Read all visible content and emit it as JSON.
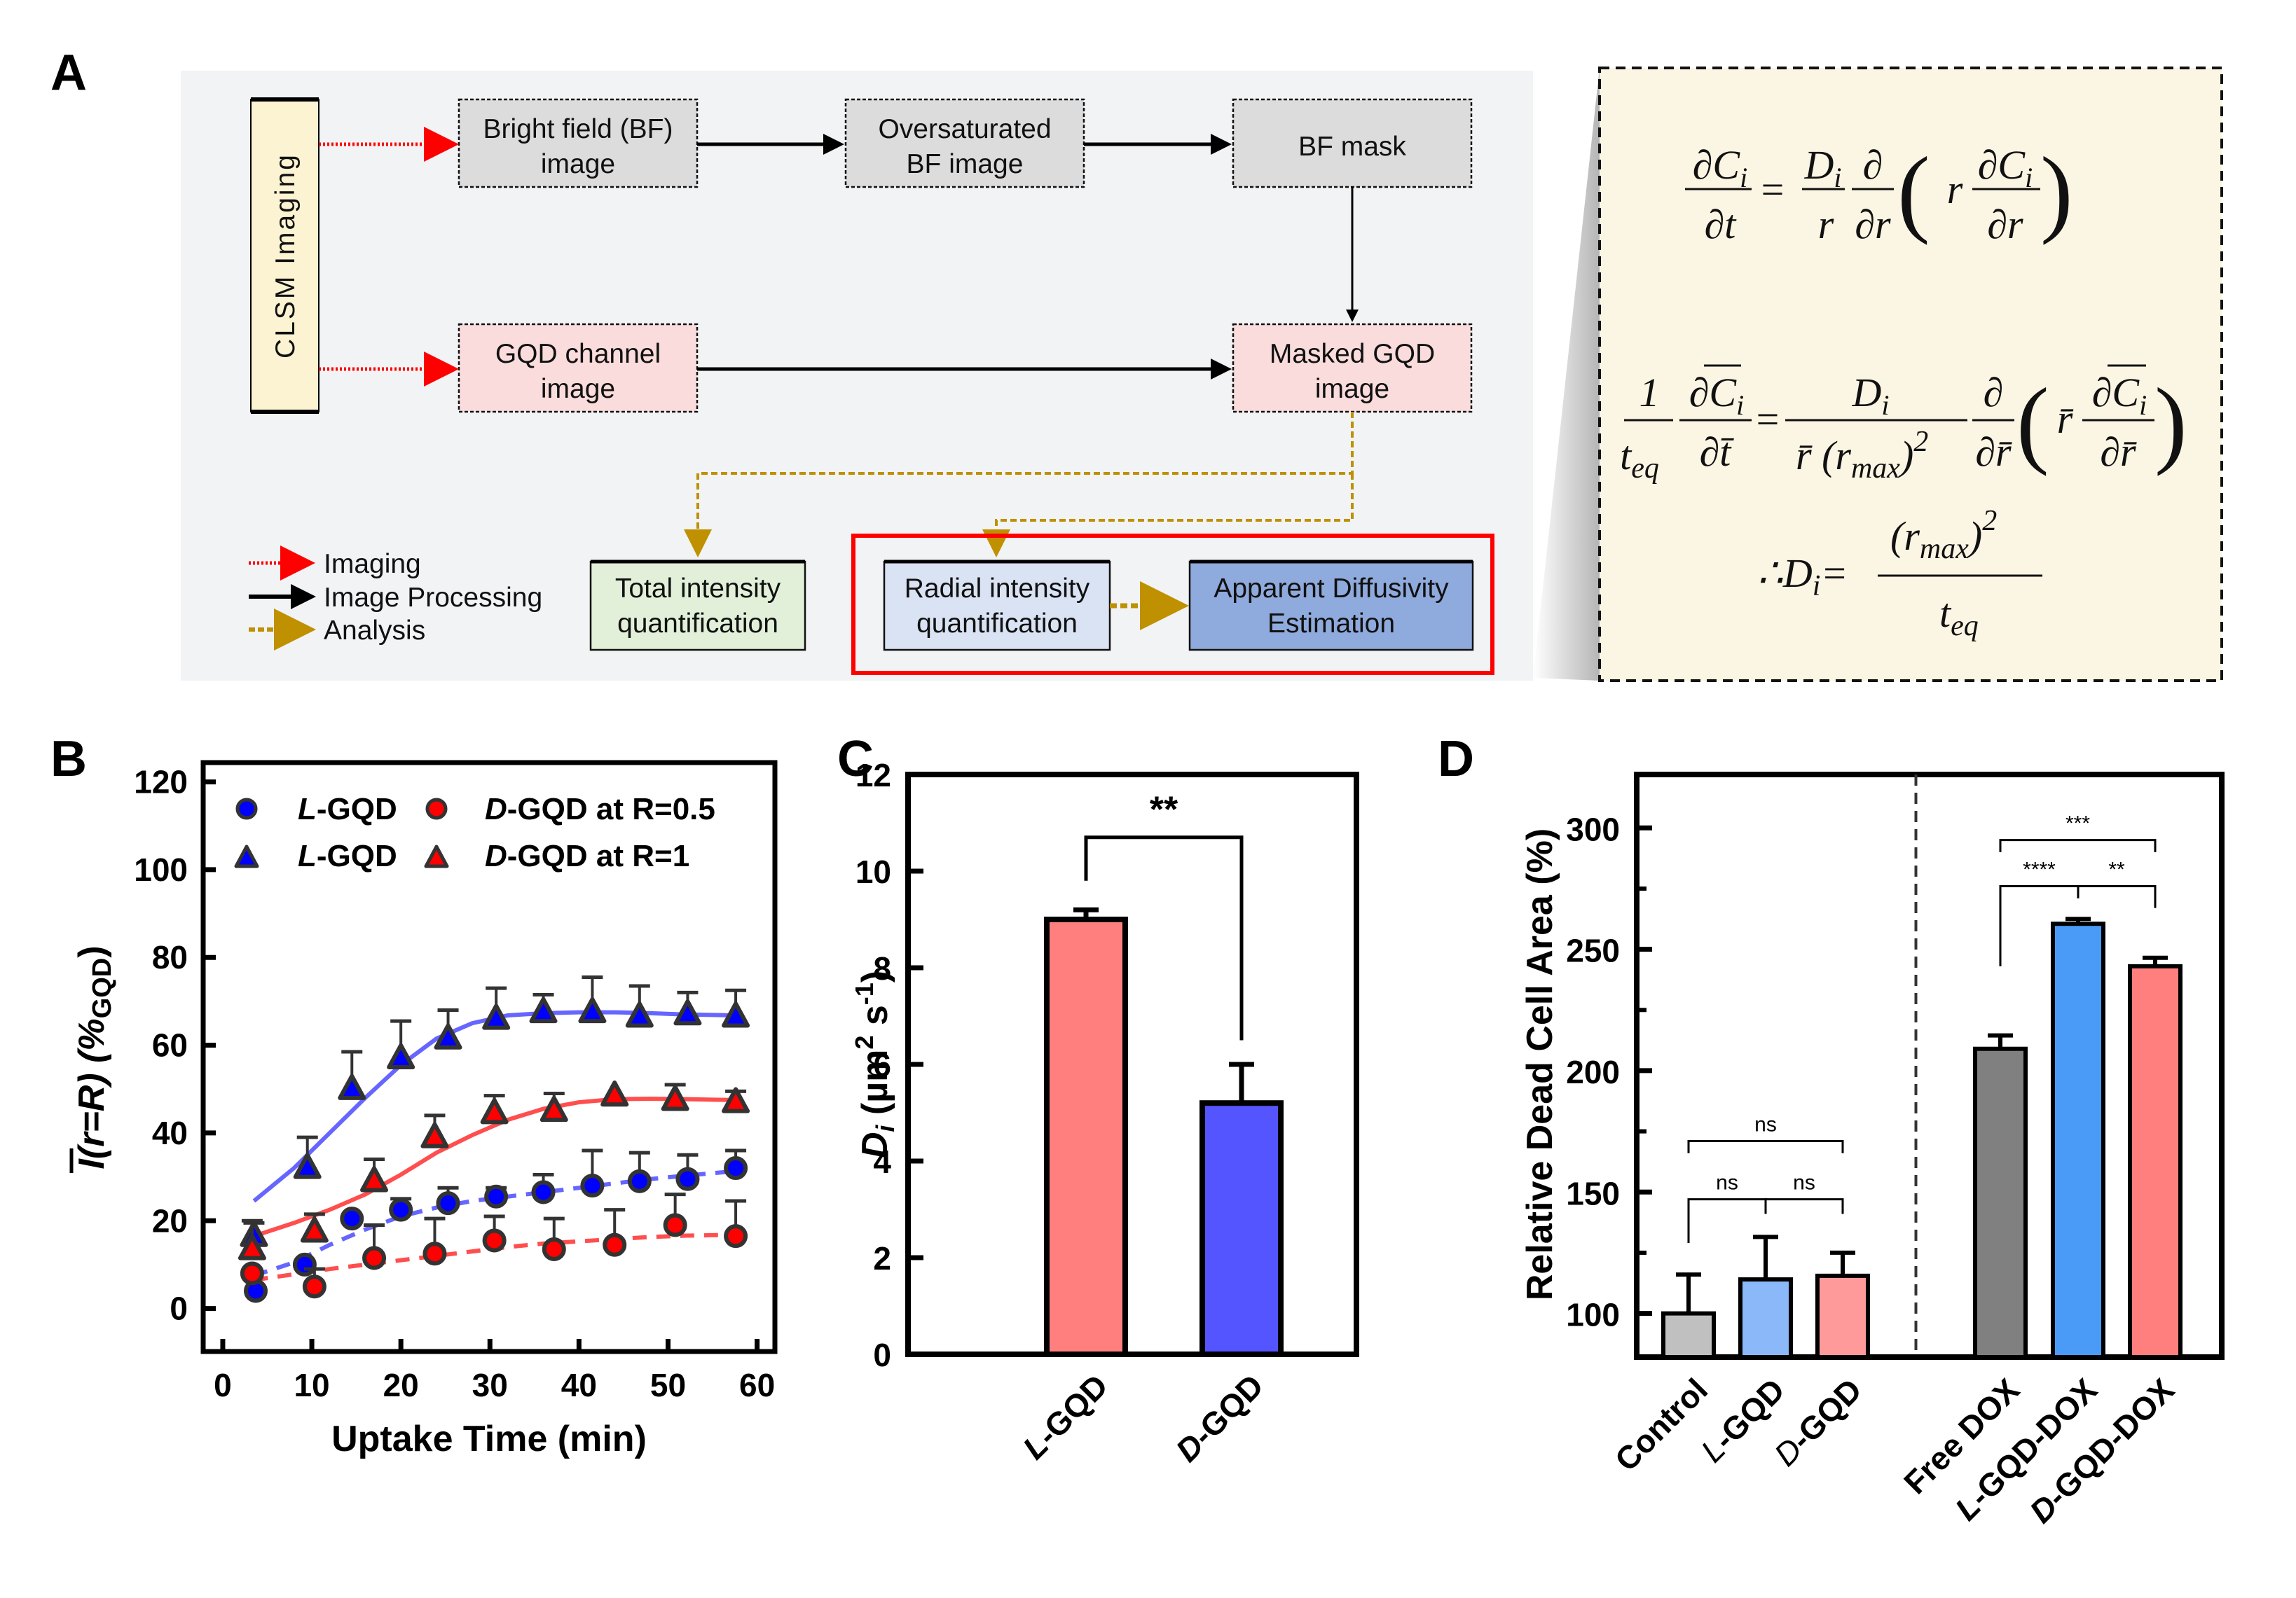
{
  "figure": {
    "panel_labels": [
      "A",
      "B",
      "C",
      "D"
    ]
  },
  "panel_a": {
    "side_label": "CLSM Imaging",
    "boxes": {
      "bf_image": [
        "Bright field (BF)",
        "image"
      ],
      "oversat": [
        "Oversaturated",
        "BF image"
      ],
      "bf_mask": [
        "BF mask"
      ],
      "gqd_channel": [
        "GQD channel",
        "image"
      ],
      "masked_gqd": [
        "Masked GQD",
        "image"
      ],
      "total_intensity": [
        "Total intensity",
        "quantification"
      ],
      "radial_intensity": [
        "Radial intensity",
        "quantification"
      ],
      "apparent_diffusivity": [
        "Apparent Diffusivity",
        "Estimation"
      ]
    },
    "legend": {
      "imaging": "Imaging",
      "processing": "Image Processing",
      "analysis": "Analysis"
    },
    "colors": {
      "background": "#f2f3f5",
      "side_box": "#fbf3d2",
      "grey_box": "#dcdcdc",
      "pink_box": "#fadcdc",
      "green_box": "#e2f0d9",
      "light_blue_box": "#dae3f3",
      "blue_box": "#8faadc",
      "imaging_arrow": "#ff0000",
      "analysis_arrow": "#bf9000",
      "highlight": "#ff0000",
      "equation_bg": "#fbf5e3"
    },
    "equations": {
      "eq1": {
        "lhs_num": "∂C",
        "lhs_num_sub": "i",
        "lhs_den": "∂t",
        "eq": "=",
        "f1_num": "D",
        "f1_num_sub": "i",
        "f1_den": "r",
        "f2_num": "∂",
        "f2_den": "∂r",
        "inner_r": "r",
        "inner_num": "∂C",
        "inner_num_sub": "i",
        "inner_den": "∂r"
      },
      "eq2": {
        "one": "1",
        "teq": "t",
        "teq_sub": "eq",
        "lhs_num": "∂C",
        "lhs_num_sub": "i",
        "lhs_den": "∂t̄",
        "eq": "=",
        "f1_num": "D",
        "f1_num_sub": "i",
        "f1_den": "r̄ (r",
        "f1_den_sub": "max",
        "f1_den_tail": ")",
        "f1_den_sup": "2",
        "f2_num": "∂",
        "f2_den": "∂r̄",
        "inner_r": "r̄",
        "inner_num": "∂C",
        "inner_num_sub": "i",
        "inner_den": "∂r̄"
      },
      "eq3": {
        "therefore": "∴D",
        "therefore_sub": "i",
        "eq": "=",
        "num": "(r",
        "num_sub": "max",
        "num_tail": ")",
        "num_sup": "2",
        "den": "t",
        "den_sub": "eq"
      }
    }
  },
  "chart_data": [
    {
      "panel": "B",
      "type": "scatter",
      "title": "",
      "xlabel": "Uptake Time (min)",
      "ylabel": "Ī(r=R) (%GQD)",
      "ylabel_parts": {
        "main": "I(r=R) (%",
        "sub": "GQD",
        "close": ")"
      },
      "xlim": [
        -2.2,
        62
      ],
      "ylim": [
        -9.8,
        124.4
      ],
      "xticks": [
        0,
        10,
        20,
        30,
        40,
        50,
        60
      ],
      "yticks": [
        0,
        20,
        40,
        60,
        80,
        100,
        120
      ],
      "legend_position": "top-left",
      "legend": [
        {
          "marker": "circle",
          "color": "#0000ff",
          "prefix": "L",
          "label": "-GQD"
        },
        {
          "marker": "circle",
          "color": "#ff0000",
          "prefix": "D",
          "label": "-GQD at R=0.5"
        },
        {
          "marker": "triangle",
          "color": "#0000ff",
          "prefix": "L",
          "label": "-GQD"
        },
        {
          "marker": "triangle",
          "color": "#ff0000",
          "prefix": "D",
          "label": "-GQD at R=1"
        }
      ],
      "series": [
        {
          "name": "L-GQD at R=1",
          "marker": "triangle",
          "color": "#0000ff",
          "line_color": "#5555ff",
          "line_style": "solid",
          "x": [
            3.5,
            9.5,
            14.5,
            20,
            25.3,
            30.7,
            36,
            41.5,
            46.8,
            52.2,
            57.6
          ],
          "y": [
            16.5,
            32,
            50,
            57,
            61.5,
            66,
            67.5,
            67.5,
            66.5,
            67,
            66.5
          ],
          "err": [
            3,
            7,
            8.5,
            8.5,
            6.5,
            7,
            4,
            8,
            7,
            5,
            6
          ],
          "fit_x": [
            3.5,
            8,
            12,
            16,
            20,
            24,
            28,
            32,
            36,
            40,
            44,
            48,
            52,
            57.6
          ],
          "fit_y": [
            24.5,
            32,
            40,
            48,
            55.5,
            61.5,
            65,
            66.8,
            67.3,
            67.5,
            67.5,
            67.3,
            67,
            66.8
          ]
        },
        {
          "name": "D-GQD at R=1",
          "marker": "triangle",
          "color": "#ff0000",
          "line_color": "#ff3b3b",
          "line_style": "solid",
          "x": [
            3.3,
            10.3,
            17,
            23.8,
            30.5,
            37.2,
            44,
            50.8,
            57.6
          ],
          "y": [
            13.5,
            17.5,
            29,
            39,
            44.5,
            45,
            48.5,
            47.5,
            47
          ],
          "err": [
            6.5,
            4,
            5,
            5,
            4,
            4,
            0,
            3.5,
            2.5
          ],
          "fit_x": [
            3.5,
            8,
            12,
            16,
            20,
            24,
            28,
            32,
            36,
            40,
            44,
            48,
            52,
            57.6
          ],
          "fit_y": [
            16.5,
            19.5,
            22.5,
            26,
            30.5,
            35.5,
            39.5,
            43,
            45.5,
            47,
            47.7,
            47.8,
            47.7,
            47.5
          ]
        },
        {
          "name": "L-GQD at R=0.5",
          "marker": "circle",
          "color": "#0000ff",
          "line_color": "#5555ff",
          "line_style": "dashed",
          "x": [
            3.7,
            9.2,
            14.5,
            20,
            25.3,
            30.7,
            36,
            41.5,
            46.8,
            52.2,
            57.6
          ],
          "y": [
            4,
            10,
            20.5,
            22.5,
            24,
            25.5,
            26.5,
            28,
            29,
            29.5,
            32
          ],
          "err": [
            0,
            0,
            0,
            2.5,
            3.5,
            2,
            4,
            8,
            6.5,
            5.5,
            4
          ],
          "fit_x": [
            3.5,
            8,
            12,
            16,
            20,
            24,
            28,
            32,
            36,
            40,
            44,
            48,
            52,
            57.6
          ],
          "fit_y": [
            7.5,
            10.5,
            14.5,
            18,
            21,
            23,
            24.5,
            25.5,
            26.5,
            27.5,
            28.5,
            29.5,
            30.3,
            31.3
          ]
        },
        {
          "name": "D-GQD at R=0.5",
          "marker": "circle",
          "color": "#ff0000",
          "line_color": "#ff3b3b",
          "line_style": "dashed",
          "x": [
            3.3,
            10.3,
            17,
            23.8,
            30.5,
            37.2,
            44,
            50.8,
            57.6
          ],
          "y": [
            8,
            5,
            11.5,
            12.5,
            15.5,
            13.5,
            14.5,
            19,
            16.5
          ],
          "err": [
            0,
            4,
            7.5,
            8,
            5.5,
            7,
            8,
            7,
            8
          ],
          "fit_x": [
            3.5,
            8,
            12,
            16,
            20,
            24,
            28,
            32,
            36,
            40,
            44,
            48,
            52,
            57.6
          ],
          "fit_y": [
            6.5,
            7.8,
            9,
            10,
            11,
            12,
            13,
            14,
            14.8,
            15.3,
            15.8,
            16.3,
            16.6,
            16.8
          ]
        }
      ]
    },
    {
      "panel": "C",
      "type": "bar",
      "title": "",
      "xlabel": "",
      "ylabel": "Di (µm² s⁻¹)",
      "ylabel_parts": {
        "d": "D",
        "d_sub": "i",
        "rest": " (µm",
        "sup2": "2",
        "s": " s",
        "sup_neg1": "-1",
        "close": ")"
      },
      "ylim": [
        0,
        12
      ],
      "yticks": [
        0,
        2,
        4,
        6,
        8,
        10,
        12
      ],
      "categories": [
        "L-GQD",
        "D-GQD"
      ],
      "category_parts": [
        {
          "prefix": "L",
          "rest": "-GQD"
        },
        {
          "prefix": "D",
          "rest": "-GQD"
        }
      ],
      "values": [
        9.0,
        5.2
      ],
      "errors": [
        0.2,
        0.8
      ],
      "colors": [
        "#ff7f7f",
        "#5555ff"
      ],
      "significance": [
        {
          "from": 0,
          "to": 1,
          "label": "**"
        }
      ]
    },
    {
      "panel": "D",
      "type": "bar",
      "title": "",
      "xlabel": "",
      "ylabel": "Relative Dead Cell Area (%)",
      "ylim": [
        82,
        322
      ],
      "yticks": [
        100,
        150,
        200,
        250,
        300
      ],
      "minor_yticks": [
        125,
        175,
        225,
        275
      ],
      "categories": [
        "Control",
        "L-GQD",
        "D-GQD",
        "Free DOX",
        "L-GQD-DOX",
        "D-GQD-DOX"
      ],
      "category_parts": [
        {
          "prefix": "",
          "rest": "Control"
        },
        {
          "prefix": "L",
          "rest": "-GQD"
        },
        {
          "prefix": "D",
          "rest": "-GQD"
        },
        {
          "prefix": "",
          "rest": "Free DOX"
        },
        {
          "prefix": "L",
          "rest": "-GQD-DOX"
        },
        {
          "prefix": "D",
          "rest": "-GQD-DOX"
        }
      ],
      "values": [
        100,
        114,
        115.5,
        209,
        260.5,
        243
      ],
      "errors": [
        16,
        17.5,
        9.5,
        5.5,
        2,
        3.5
      ],
      "colors": [
        "#c0c0c0",
        "#8ab8f8",
        "#ff9a9a",
        "#808080",
        "#4a9af8",
        "#ff7f7f"
      ],
      "group_divider_after": 2,
      "significance": [
        {
          "from": 0,
          "to": 1,
          "label": "ns",
          "level": 0
        },
        {
          "from": 1,
          "to": 2,
          "label": "ns",
          "level": 0
        },
        {
          "from": 0,
          "to": 2,
          "label": "ns",
          "level": 1
        },
        {
          "from": 3,
          "to": 4,
          "label": "****",
          "level": 0
        },
        {
          "from": 4,
          "to": 5,
          "label": "**",
          "level": 0
        },
        {
          "from": 3,
          "to": 5,
          "label": "***",
          "level": 1
        }
      ]
    }
  ]
}
